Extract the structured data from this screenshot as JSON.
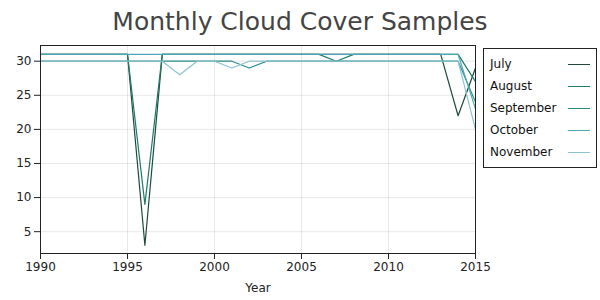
{
  "chart_data": {
    "type": "line",
    "title": "Monthly Cloud Cover Samples",
    "x_label": "Year",
    "x": [
      1990,
      1991,
      1992,
      1993,
      1994,
      1995,
      1996,
      1997,
      1998,
      1999,
      2000,
      2001,
      2002,
      2003,
      2004,
      2005,
      2006,
      2007,
      2008,
      2009,
      2010,
      2011,
      2012,
      2013,
      2014,
      2015
    ],
    "series": [
      {
        "name": "July",
        "color": "#1d4a3a",
        "values": [
          31,
          31,
          31,
          31,
          31,
          31,
          3,
          31,
          31,
          31,
          31,
          31,
          31,
          31,
          31,
          31,
          31,
          31,
          31,
          31,
          31,
          31,
          31,
          31,
          22,
          29
        ]
      },
      {
        "name": "August",
        "color": "#1f7a6a",
        "values": [
          31,
          31,
          31,
          31,
          31,
          31,
          9,
          31,
          31,
          31,
          31,
          31,
          31,
          31,
          31,
          31,
          31,
          30,
          31,
          31,
          31,
          31,
          31,
          31,
          31,
          27
        ]
      },
      {
        "name": "September",
        "color": "#2a8c8c",
        "values": [
          30,
          30,
          30,
          30,
          30,
          30,
          30,
          30,
          30,
          30,
          30,
          30,
          29,
          30,
          30,
          30,
          30,
          30,
          30,
          30,
          30,
          30,
          30,
          30,
          30,
          24
        ]
      },
      {
        "name": "October",
        "color": "#4aa7b5",
        "values": [
          31,
          31,
          31,
          31,
          31,
          31,
          31,
          31,
          31,
          31,
          31,
          31,
          31,
          31,
          31,
          31,
          31,
          31,
          31,
          31,
          31,
          31,
          31,
          31,
          31,
          23
        ]
      },
      {
        "name": "November",
        "color": "#8cc3cf",
        "values": [
          30,
          30,
          30,
          30,
          30,
          30,
          30,
          30,
          28,
          30,
          30,
          29,
          30,
          30,
          30,
          30,
          30,
          30,
          30,
          30,
          30,
          30,
          30,
          30,
          30,
          20
        ]
      }
    ],
    "xlim": [
      1990,
      2015
    ],
    "xticks": [
      1990,
      1995,
      2000,
      2005,
      2010,
      2015
    ],
    "ylim": [
      1.8,
      32.3
    ],
    "yticks": [
      5,
      10,
      15,
      20,
      25,
      30
    ],
    "grid": true,
    "legend": "right"
  }
}
